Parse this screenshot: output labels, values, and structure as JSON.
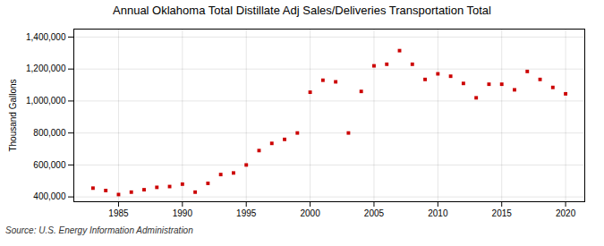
{
  "chart_data": {
    "type": "scatter",
    "title": "Annual Oklahoma Total Distillate Adj Sales/Deliveries Transportation Total",
    "ylabel": "Thousand Gallons",
    "annotations": [
      "Source: U.S. Energy Information Administration"
    ],
    "x": [
      1983,
      1984,
      1985,
      1986,
      1987,
      1988,
      1989,
      1990,
      1991,
      1992,
      1993,
      1994,
      1995,
      1996,
      1997,
      1998,
      1999,
      2000,
      2001,
      2002,
      2003,
      2004,
      2005,
      2006,
      2007,
      2008,
      2009,
      2010,
      2011,
      2012,
      2013,
      2014,
      2015,
      2016,
      2017,
      2018,
      2019,
      2020
    ],
    "values": [
      455000,
      440000,
      415000,
      430000,
      445000,
      460000,
      465000,
      480000,
      430000,
      485000,
      540000,
      550000,
      600000,
      690000,
      735000,
      760000,
      800000,
      1055000,
      1130000,
      1120000,
      800000,
      1060000,
      1220000,
      1230000,
      1315000,
      1230000,
      1135000,
      1170000,
      1155000,
      1110000,
      1020000,
      1105000,
      1105000,
      1070000,
      1185000,
      1135000,
      1085000,
      1045000
    ],
    "color": "#cc0000",
    "marker": "square",
    "xlim": [
      1981.5,
      2021.5
    ],
    "xticks": [
      1985,
      1990,
      1995,
      2000,
      2005,
      2010,
      2015,
      2020
    ],
    "ylim": [
      370000,
      1450000
    ],
    "yticks": [
      {
        "value": 400000,
        "label": "400,000"
      },
      {
        "value": 600000,
        "label": "600,000"
      },
      {
        "value": 800000,
        "label": "800,000"
      },
      {
        "value": 1000000,
        "label": "1,000,000"
      },
      {
        "value": 1200000,
        "label": "1,200,000"
      },
      {
        "value": 1400000,
        "label": "1,400,000"
      }
    ],
    "grid": true
  }
}
